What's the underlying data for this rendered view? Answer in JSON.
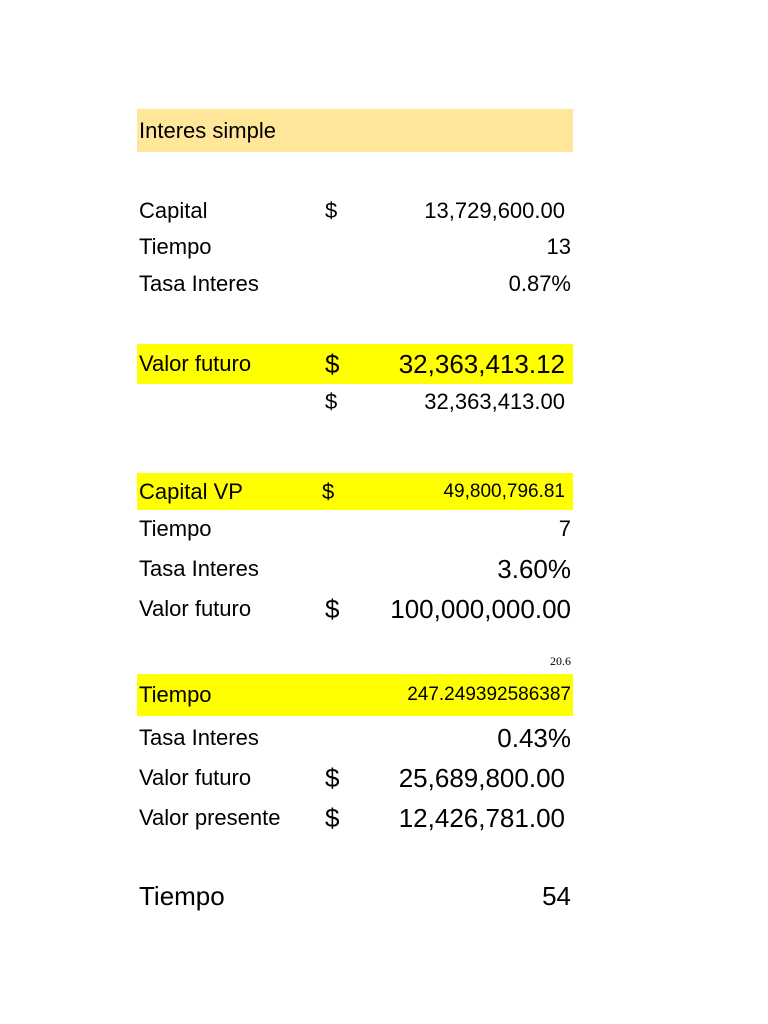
{
  "title": "Interes simple",
  "section1": {
    "capital": {
      "label": "Capital",
      "currency": "$",
      "value": "13,729,600.00"
    },
    "tiempo": {
      "label": "Tiempo",
      "value": "13"
    },
    "tasa": {
      "label": "Tasa Interes",
      "value": "0.87%"
    },
    "valor_futuro": {
      "label": "Valor futuro",
      "currency": "$",
      "value": "32,363,413.12"
    },
    "valor_futuro_rounded": {
      "currency": "$",
      "value": "32,363,413.00"
    }
  },
  "section2": {
    "capital_vp": {
      "label": "Capital VP",
      "currency": "$",
      "value": "49,800,796.81"
    },
    "tiempo": {
      "label": "Tiempo",
      "value": "7"
    },
    "tasa": {
      "label": "Tasa Interes",
      "value": "3.60%"
    },
    "valor_futuro": {
      "label": "Valor futuro",
      "currency": "$",
      "value": "100,000,000.00"
    }
  },
  "section3": {
    "note": "20.6",
    "tiempo": {
      "label": "Tiempo",
      "value": "247.249392586387"
    },
    "tasa": {
      "label": "Tasa Interes",
      "value": "0.43%"
    },
    "valor_futuro": {
      "label": "Valor futuro",
      "currency": "$",
      "value": "25,689,800.00"
    },
    "valor_presente": {
      "label": "Valor presente",
      "currency": "$",
      "value": "12,426,781.00"
    }
  },
  "section4": {
    "tiempo": {
      "label": "Tiempo",
      "value": "54"
    }
  },
  "colors": {
    "header_fill": "#ffe699",
    "highlight_fill": "#ffff00"
  }
}
